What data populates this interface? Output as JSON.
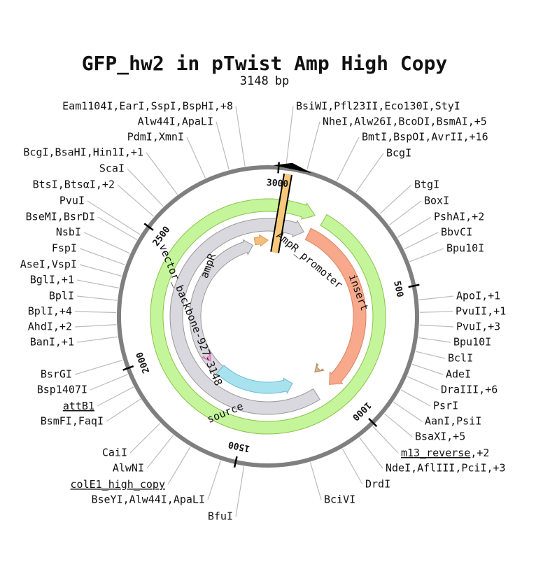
{
  "title": "GFP_hw2 in pTwist Amp High Copy",
  "length": 3148,
  "length_unit": "bp",
  "ticks": [
    500,
    1000,
    1500,
    2000,
    2500,
    3000
  ],
  "feature_labels": [
    "source",
    "insert",
    "vector_backbone-927-3148",
    "ampR",
    "AmpR_promoter"
  ],
  "left_labels": [
    "Eam1104I,EarI,SspI,BspHI,+8",
    "Alw44I,ApaLI",
    "PdmI,XmnI",
    "BcgI,BsaHI,Hin1I,+1",
    "ScaI",
    "BtsI,BtsαI,+2",
    "PvuI",
    "BseMI,BsrDI",
    "NsbI",
    "FspI",
    "AseI,VspI",
    "BglI,+1",
    "BplI",
    "BplI,+4",
    "AhdI,+2",
    "BanI,+1",
    "BsrGI",
    "Bsp1407I",
    {
      "text": "attB1",
      "underline": true
    },
    "BsmFI,FaqI",
    "CaiI",
    "AlwNI",
    {
      "text": "colE1_high_copy",
      "underline": true
    },
    "BseYI,Alw44I,ApaLI",
    "BfuI"
  ],
  "right_labels": [
    "BsiWI,Pfl23II,Eco130I,StyI",
    "NheI,Alw26I,BcoDI,BsmAI,+5",
    "BmtI,BspOI,AvrII,+16",
    "BcgI",
    "BtgI",
    "BoxI",
    "PshAI,+2",
    "BbvCI",
    "Bpu10I",
    "ApoI,+1",
    "PvuII,+1",
    "PvuI,+3",
    "Bpu10I",
    "BclI",
    "AdeI",
    "DraIII,+6",
    "PsrI",
    "AanI,PsiI",
    "BsaXI,+5",
    {
      "text": "m13_reverse",
      "underline": true,
      "suffix": ",+2"
    },
    "NdeI,AflIII,PciI,+3",
    "DrdI",
    "BciVI"
  ]
}
